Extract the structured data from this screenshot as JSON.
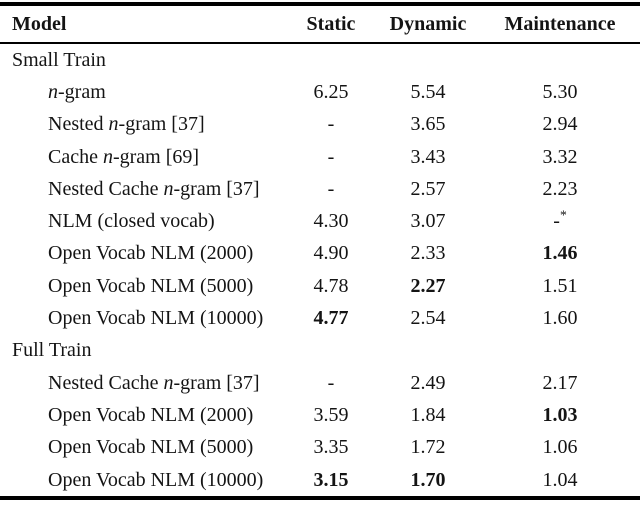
{
  "page": {
    "background_color": "#ffffff",
    "text_color": "#141414",
    "rule_color": "#000000"
  },
  "table": {
    "columns": [
      {
        "key": "model",
        "label": "Model"
      },
      {
        "key": "static",
        "label": "Static"
      },
      {
        "key": "dynamic",
        "label": "Dynamic"
      },
      {
        "key": "maintenance",
        "label": "Maintenance"
      }
    ],
    "rows": [
      {
        "type": "section",
        "label": "Small Train"
      },
      {
        "type": "model",
        "name": [
          {
            "text": "n",
            "italic": true
          },
          {
            "text": "-gram",
            "italic": false
          }
        ],
        "values": [
          {
            "text": "6.25",
            "bold": false
          },
          {
            "text": "5.54",
            "bold": false
          },
          {
            "text": "5.30",
            "bold": false
          }
        ]
      },
      {
        "type": "model",
        "name": [
          {
            "text": "Nested ",
            "italic": false
          },
          {
            "text": "n",
            "italic": true
          },
          {
            "text": "-gram [37]",
            "italic": false
          }
        ],
        "values": [
          {
            "text": "-",
            "bold": false
          },
          {
            "text": "3.65",
            "bold": false
          },
          {
            "text": "2.94",
            "bold": false
          }
        ]
      },
      {
        "type": "model",
        "name": [
          {
            "text": "Cache ",
            "italic": false
          },
          {
            "text": "n",
            "italic": true
          },
          {
            "text": "-gram [69]",
            "italic": false
          }
        ],
        "values": [
          {
            "text": "-",
            "bold": false
          },
          {
            "text": "3.43",
            "bold": false
          },
          {
            "text": "3.32",
            "bold": false
          }
        ]
      },
      {
        "type": "model",
        "name": [
          {
            "text": "Nested Cache ",
            "italic": false
          },
          {
            "text": "n",
            "italic": true
          },
          {
            "text": "-gram [37]",
            "italic": false
          }
        ],
        "values": [
          {
            "text": "-",
            "bold": false
          },
          {
            "text": "2.57",
            "bold": false
          },
          {
            "text": "2.23",
            "bold": false
          }
        ]
      },
      {
        "type": "model",
        "name": [
          {
            "text": "NLM (closed vocab)",
            "italic": false
          }
        ],
        "values": [
          {
            "text": "4.30",
            "bold": false
          },
          {
            "text": "3.07",
            "bold": false
          },
          {
            "text": "-",
            "sup": "*",
            "bold": false
          }
        ]
      },
      {
        "type": "model",
        "name": [
          {
            "text": "Open Vocab NLM (2000)",
            "italic": false
          }
        ],
        "values": [
          {
            "text": "4.90",
            "bold": false
          },
          {
            "text": "2.33",
            "bold": false
          },
          {
            "text": "1.46",
            "bold": true
          }
        ]
      },
      {
        "type": "model",
        "name": [
          {
            "text": "Open Vocab NLM (5000)",
            "italic": false
          }
        ],
        "values": [
          {
            "text": "4.78",
            "bold": false
          },
          {
            "text": "2.27",
            "bold": true
          },
          {
            "text": "1.51",
            "bold": false
          }
        ]
      },
      {
        "type": "model",
        "name": [
          {
            "text": "Open Vocab NLM (10000)",
            "italic": false
          }
        ],
        "values": [
          {
            "text": "4.77",
            "bold": true
          },
          {
            "text": "2.54",
            "bold": false
          },
          {
            "text": "1.60",
            "bold": false
          }
        ]
      },
      {
        "type": "section",
        "label": "Full Train"
      },
      {
        "type": "model",
        "name": [
          {
            "text": "Nested Cache ",
            "italic": false
          },
          {
            "text": "n",
            "italic": true
          },
          {
            "text": "-gram [37]",
            "italic": false
          }
        ],
        "values": [
          {
            "text": "-",
            "bold": false
          },
          {
            "text": "2.49",
            "bold": false
          },
          {
            "text": "2.17",
            "bold": false
          }
        ]
      },
      {
        "type": "model",
        "name": [
          {
            "text": "Open Vocab NLM (2000)",
            "italic": false
          }
        ],
        "values": [
          {
            "text": "3.59",
            "bold": false
          },
          {
            "text": "1.84",
            "bold": false
          },
          {
            "text": "1.03",
            "bold": true
          }
        ]
      },
      {
        "type": "model",
        "name": [
          {
            "text": "Open Vocab NLM (5000)",
            "italic": false
          }
        ],
        "values": [
          {
            "text": "3.35",
            "bold": false
          },
          {
            "text": "1.72",
            "bold": false
          },
          {
            "text": "1.06",
            "bold": false
          }
        ]
      },
      {
        "type": "model",
        "name": [
          {
            "text": "Open Vocab NLM (10000)",
            "italic": false
          }
        ],
        "values": [
          {
            "text": "3.15",
            "bold": true
          },
          {
            "text": "1.70",
            "bold": true
          },
          {
            "text": "1.04",
            "bold": false
          }
        ]
      }
    ]
  }
}
